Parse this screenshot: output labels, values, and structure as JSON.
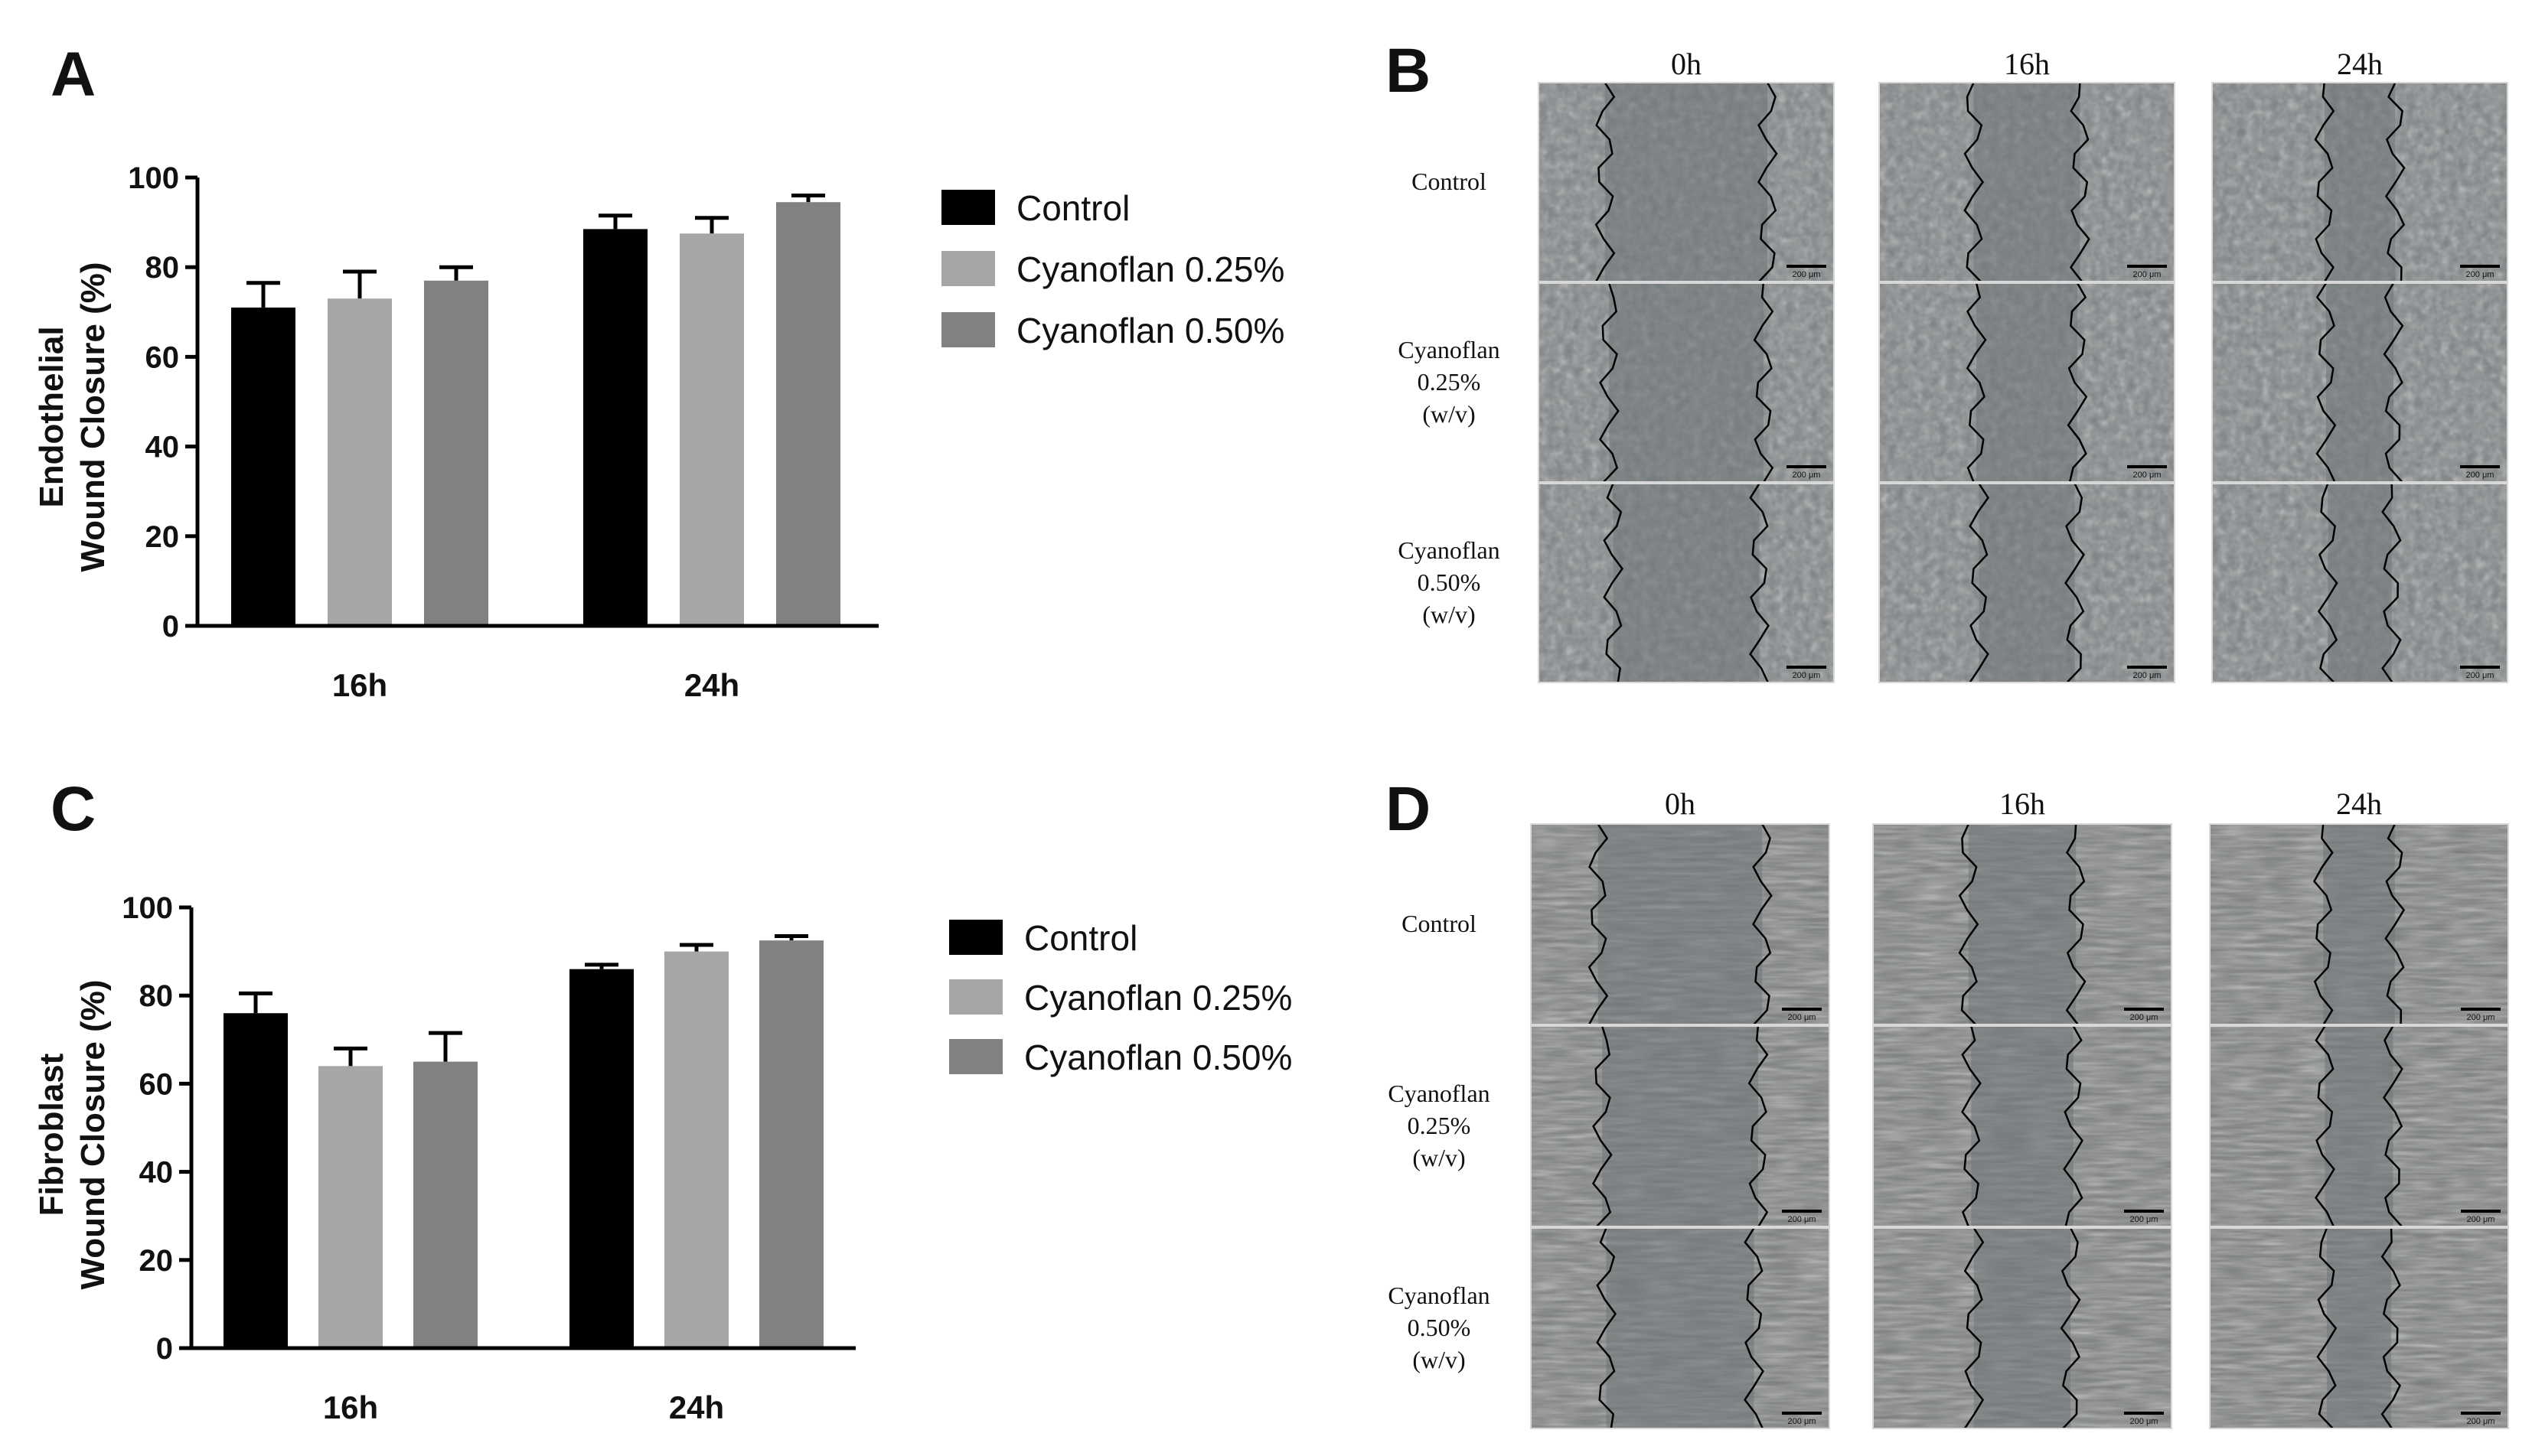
{
  "panels": {
    "A": {
      "letter": "A"
    },
    "B": {
      "letter": "B"
    },
    "C": {
      "letter": "C"
    },
    "D": {
      "letter": "D"
    }
  },
  "chart_data": [
    {
      "id": "A",
      "type": "bar",
      "title": "",
      "ylabel_lines": [
        "Endothelial",
        "Wound Closure  (%)"
      ],
      "xlabel": "",
      "categories": [
        "16h",
        "24h"
      ],
      "ylim": [
        0,
        100
      ],
      "yticks": [
        0,
        20,
        40,
        60,
        80,
        100
      ],
      "grid": false,
      "legend_position": "right",
      "series": [
        {
          "name": "Control",
          "color": "#000000",
          "values": [
            71,
            88.5
          ],
          "errors": [
            5.5,
            3
          ]
        },
        {
          "name": "Cyanoflan 0.25%",
          "color": "#a6a5a8",
          "values": [
            73,
            87.5
          ],
          "errors": [
            6,
            3.5
          ]
        },
        {
          "name": "Cyanoflan 0.50%",
          "color": "#818183",
          "values": [
            77,
            94.5
          ],
          "errors": [
            3,
            1.5
          ]
        }
      ]
    },
    {
      "id": "C",
      "type": "bar",
      "title": "",
      "ylabel_lines": [
        "Fibroblast",
        "Wound Closure  (%)"
      ],
      "xlabel": "",
      "categories": [
        "16h",
        "24h"
      ],
      "ylim": [
        0,
        100
      ],
      "yticks": [
        0,
        20,
        40,
        60,
        80,
        100
      ],
      "grid": false,
      "legend_position": "right",
      "series": [
        {
          "name": "Control",
          "color": "#000000",
          "values": [
            76,
            86
          ],
          "errors": [
            4.5,
            1
          ]
        },
        {
          "name": "Cyanoflan 0.25%",
          "color": "#a6a5a8",
          "values": [
            64,
            90
          ],
          "errors": [
            4,
            1.5
          ]
        },
        {
          "name": "Cyanoflan 0.50%",
          "color": "#818183",
          "values": [
            65,
            92.5
          ],
          "errors": [
            6.5,
            1
          ]
        }
      ]
    }
  ],
  "micrographs": [
    {
      "id": "B",
      "columns": [
        "0h",
        "16h",
        "24h"
      ],
      "rows": [
        [
          "Control"
        ],
        [
          "Cyanoflan",
          "0.25%",
          "(w/v)"
        ],
        [
          "Cyanoflan",
          "0.50%",
          "(w/v)"
        ]
      ],
      "scale_bar": "200 μm",
      "tone": "#7f8486"
    },
    {
      "id": "D",
      "columns": [
        "0h",
        "16h",
        "24h"
      ],
      "rows": [
        [
          "Control"
        ],
        [
          "Cyanoflan",
          "0.25%",
          "(w/v)"
        ],
        [
          "Cyanoflan",
          "0.50%",
          "(w/v)"
        ]
      ],
      "scale_bar": "200 μm",
      "tone": "#7c7f80"
    }
  ]
}
